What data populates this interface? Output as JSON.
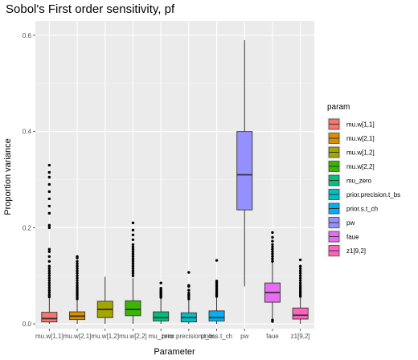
{
  "chart_data": {
    "type": "boxplot",
    "title": "Sobol's First order sensitivity,  pf",
    "xlabel": "Parameter",
    "ylabel": "Proportion variance",
    "ylim": [
      -0.01,
      0.63
    ],
    "yticks": [
      "0.0",
      "0.2",
      "0.4",
      "0.6"
    ],
    "ytick_values": [
      0.0,
      0.2,
      0.4,
      0.6
    ],
    "grid": true,
    "legend_title": "param",
    "legend_position": "right",
    "categories": [
      "mu.w[1,1]",
      "mu.w[2,1]",
      "mu.w[1,2]",
      "mu.w[2,2]",
      "mu_zero",
      "prior.precision.t_bs",
      "prior.s.t_ch",
      "pw",
      "faue",
      "z1[9,2]"
    ],
    "colors": [
      "#F8766D",
      "#D89000",
      "#A3A500",
      "#39B600",
      "#00BF7D",
      "#00BFC4",
      "#00B0F6",
      "#9590FF",
      "#E76BF3",
      "#FF62BC"
    ],
    "series": [
      {
        "name": "mu.w[1,1]",
        "min": 0.0,
        "q1": 0.004,
        "median": 0.011,
        "q3": 0.024,
        "max": 0.054,
        "outliers": [
          0.056,
          0.06,
          0.065,
          0.07,
          0.075,
          0.08,
          0.085,
          0.09,
          0.095,
          0.1,
          0.105,
          0.11,
          0.115,
          0.12,
          0.13,
          0.14,
          0.15,
          0.155,
          0.2,
          0.205,
          0.23,
          0.245,
          0.26,
          0.275,
          0.29,
          0.305,
          0.315,
          0.33
        ]
      },
      {
        "name": "mu.w[2,1]",
        "min": 0.0,
        "q1": 0.009,
        "median": 0.016,
        "q3": 0.025,
        "max": 0.05,
        "outliers": [
          0.052,
          0.056,
          0.06,
          0.064,
          0.068,
          0.072,
          0.076,
          0.08,
          0.085,
          0.09,
          0.095,
          0.1,
          0.105,
          0.11,
          0.115,
          0.12,
          0.125,
          0.13,
          0.137,
          0.14
        ]
      },
      {
        "name": "mu.w[1,2]",
        "min": 0.0,
        "q1": 0.013,
        "median": 0.03,
        "q3": 0.047,
        "max": 0.098,
        "outliers": []
      },
      {
        "name": "mu.w[2,2]",
        "min": 0.0,
        "q1": 0.017,
        "median": 0.03,
        "q3": 0.048,
        "max": 0.095,
        "outliers": [
          0.1,
          0.105,
          0.11,
          0.115,
          0.12,
          0.125,
          0.13,
          0.135,
          0.14,
          0.145,
          0.15,
          0.155,
          0.16,
          0.165,
          0.175,
          0.185,
          0.195,
          0.21
        ]
      },
      {
        "name": "mu_zero",
        "min": 0.0,
        "q1": 0.006,
        "median": 0.013,
        "q3": 0.025,
        "max": 0.053,
        "outliers": [
          0.055,
          0.058,
          0.061,
          0.064,
          0.067,
          0.07,
          0.074,
          0.085
        ]
      },
      {
        "name": "prior.precision.t_bs",
        "min": 0.0,
        "q1": 0.004,
        "median": 0.013,
        "q3": 0.023,
        "max": 0.05,
        "outliers": [
          0.052,
          0.056,
          0.06,
          0.064,
          0.07,
          0.078,
          0.08,
          0.107
        ]
      },
      {
        "name": "prior.s.t_ch",
        "min": 0.0,
        "q1": 0.006,
        "median": 0.013,
        "q3": 0.027,
        "max": 0.055,
        "outliers": [
          0.057,
          0.06,
          0.063,
          0.066,
          0.07,
          0.074,
          0.078,
          0.082,
          0.086,
          0.089,
          0.132
        ]
      },
      {
        "name": "pw",
        "min": 0.078,
        "q1": 0.237,
        "median": 0.31,
        "q3": 0.4,
        "max": 0.59,
        "outliers": []
      },
      {
        "name": "faue",
        "min": 0.01,
        "q1": 0.045,
        "median": 0.065,
        "q3": 0.085,
        "max": 0.128,
        "outliers": [
          0.005,
          0.008,
          0.13,
          0.135,
          0.14,
          0.145,
          0.15,
          0.155,
          0.16,
          0.165,
          0.172,
          0.18,
          0.19
        ]
      },
      {
        "name": "z1[9,2]",
        "min": 0.0,
        "q1": 0.01,
        "median": 0.018,
        "q3": 0.033,
        "max": 0.055,
        "outliers": [
          0.057,
          0.06,
          0.064,
          0.068,
          0.072,
          0.076,
          0.08,
          0.085,
          0.09,
          0.095,
          0.1,
          0.105,
          0.11,
          0.115,
          0.12,
          0.133
        ]
      }
    ]
  }
}
